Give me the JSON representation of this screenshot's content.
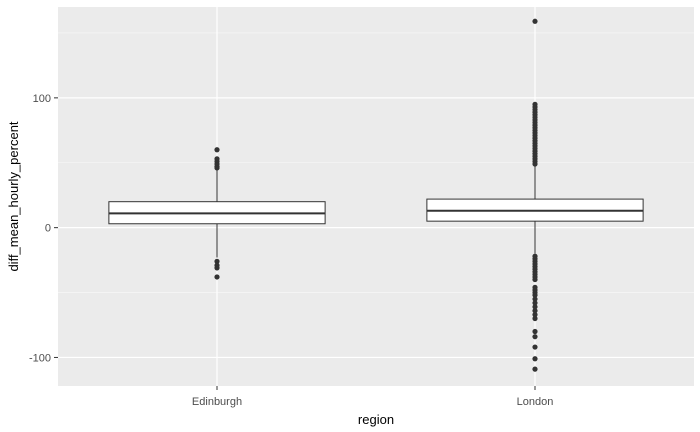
{
  "chart_data": {
    "type": "boxplot",
    "title": "",
    "xlabel": "region",
    "ylabel": "diff_mean_hourly_percent",
    "ylim": [
      -122,
      170
    ],
    "y_ticks": [
      -100,
      0,
      100
    ],
    "y_tick_labels": [
      "-100",
      "0",
      "100"
    ],
    "grid": true,
    "legend": "none",
    "colors": {
      "panel_bg": "#ebebeb",
      "grid_major": "#ffffff",
      "box_fill": "#ffffff",
      "box_stroke": "#333333",
      "outlier": "#333333",
      "tick_text": "#4d4d4d",
      "tick_mark": "#333333"
    },
    "categories": [
      "Edinburgh",
      "London"
    ],
    "groups": [
      {
        "name": "Edinburgh",
        "q1": 3,
        "median": 11,
        "q3": 20,
        "whisker_low": -23,
        "whisker_high": 45,
        "outliers": [
          60,
          53,
          51,
          49,
          47,
          46,
          -26,
          -29,
          -31,
          -38
        ]
      },
      {
        "name": "London",
        "q1": 5,
        "median": 13,
        "q3": 22,
        "whisker_low": -20,
        "whisker_high": 48,
        "outliers": [
          159,
          95,
          93,
          91,
          89,
          87,
          85,
          83,
          81,
          79,
          77,
          75,
          73,
          71,
          69,
          67,
          65,
          63,
          61,
          59,
          57,
          55,
          53,
          51,
          49,
          -22,
          -24,
          -26,
          -28,
          -30,
          -32,
          -34,
          -36,
          -38,
          -40,
          -46,
          -48,
          -50,
          -52,
          -55,
          -58,
          -61,
          -64,
          -67,
          -70,
          -80,
          -84,
          -92,
          -101,
          -109
        ]
      }
    ]
  }
}
